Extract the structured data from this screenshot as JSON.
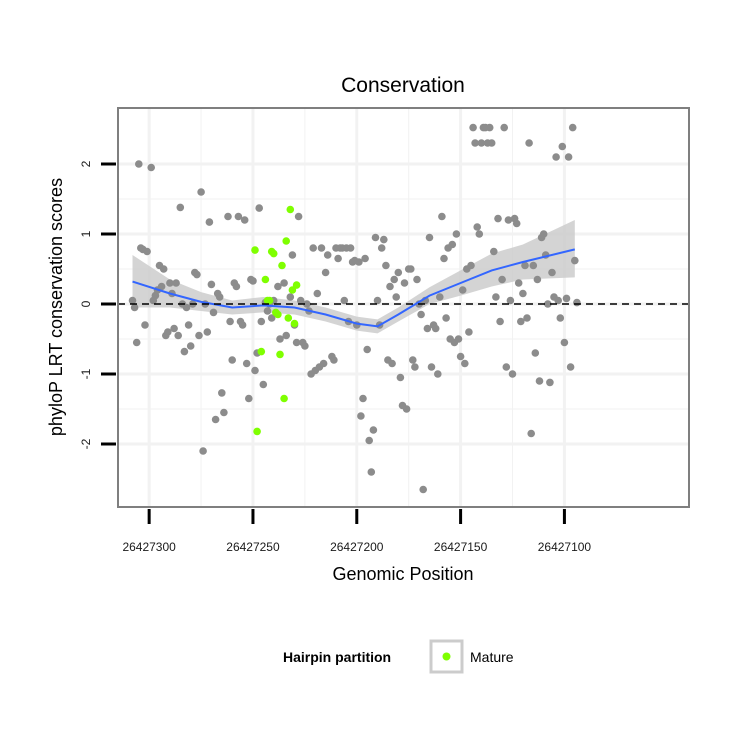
{
  "chart_data": {
    "type": "scatter",
    "title": "Conservation",
    "xlabel": "Genomic Position",
    "ylabel": "phyloP LRT conservation scores",
    "x_reversed": true,
    "xlim": [
      26427315,
      26427040
    ],
    "ylim": [
      -2.9,
      2.8
    ],
    "x_ticks": [
      26427300,
      26427250,
      26427200,
      26427150,
      26427100
    ],
    "x_tick_labels": [
      "26427300",
      "26427250",
      "26427200",
      "26427150",
      "26427100"
    ],
    "y_ticks": [
      -2,
      -1,
      0,
      1,
      2
    ],
    "y_tick_labels": [
      "-2",
      "-1",
      "0",
      "1",
      "2"
    ],
    "grid": true,
    "reference_line": {
      "y": 0,
      "style": "dashed"
    },
    "legend": {
      "title": "Hairpin partition",
      "placement": "bottom",
      "entries": [
        {
          "label": "Mature",
          "color": "#7fff00"
        }
      ]
    },
    "colors": {
      "points": "#8c8c8c",
      "mature": "#7fff00",
      "smooth_line": "#3366ff",
      "confidence_band": "#cccccc",
      "panel_border": "#7f7f7f",
      "grid": "#f2f2f2"
    },
    "series": [
      {
        "name": "Other",
        "color": "#8c8c8c",
        "points": [
          [
            26427308,
            0.05
          ],
          [
            26427307,
            -0.05
          ],
          [
            26427306,
            -0.55
          ],
          [
            26427305,
            2.0
          ],
          [
            26427304,
            0.8
          ],
          [
            26427303,
            0.78
          ],
          [
            26427302,
            -0.3
          ],
          [
            26427301,
            0.75
          ],
          [
            26427299,
            1.95
          ],
          [
            26427298,
            0.05
          ],
          [
            26427297,
            0.12
          ],
          [
            26427296,
            0.2
          ],
          [
            26427295,
            0.55
          ],
          [
            26427294,
            0.25
          ],
          [
            26427293,
            0.5
          ],
          [
            26427292,
            -0.45
          ],
          [
            26427291,
            -0.4
          ],
          [
            26427290,
            0.3
          ],
          [
            26427289,
            0.15
          ],
          [
            26427288,
            -0.35
          ],
          [
            26427287,
            0.3
          ],
          [
            26427286,
            -0.45
          ],
          [
            26427285,
            1.38
          ],
          [
            26427284,
            0.0
          ],
          [
            26427283,
            -0.68
          ],
          [
            26427282,
            -0.05
          ],
          [
            26427281,
            -0.3
          ],
          [
            26427280,
            -0.6
          ],
          [
            26427279,
            0.0
          ],
          [
            26427278,
            0.45
          ],
          [
            26427277,
            0.42
          ],
          [
            26427276,
            -0.45
          ],
          [
            26427275,
            1.6
          ],
          [
            26427274,
            -2.1
          ],
          [
            26427273,
            0.0
          ],
          [
            26427272,
            -0.4
          ],
          [
            26427271,
            1.17
          ],
          [
            26427270,
            0.28
          ],
          [
            26427269,
            -0.12
          ],
          [
            26427268,
            -1.65
          ],
          [
            26427267,
            0.15
          ],
          [
            26427266,
            0.1
          ],
          [
            26427265,
            -1.27
          ],
          [
            26427264,
            -1.55
          ],
          [
            26427262,
            1.25
          ],
          [
            26427261,
            -0.25
          ],
          [
            26427260,
            -0.8
          ],
          [
            26427259,
            0.3
          ],
          [
            26427258,
            0.25
          ],
          [
            26427257,
            1.25
          ],
          [
            26427256,
            -0.25
          ],
          [
            26427255,
            -0.3
          ],
          [
            26427254,
            1.2
          ],
          [
            26427253,
            -0.85
          ],
          [
            26427252,
            -1.35
          ],
          [
            26427251,
            0.35
          ],
          [
            26427250,
            0.33
          ],
          [
            26427249,
            -0.95
          ],
          [
            26427248,
            -0.7
          ],
          [
            26427247,
            1.37
          ],
          [
            26427246,
            -0.25
          ],
          [
            26427245,
            -1.15
          ],
          [
            26427244,
            0.02
          ],
          [
            26427243,
            -0.1
          ],
          [
            26427242,
            0.0
          ],
          [
            26427241,
            -0.2
          ],
          [
            26427240,
            0.05
          ],
          [
            26427238,
            0.25
          ],
          [
            26427237,
            -0.5
          ],
          [
            26427235,
            0.3
          ],
          [
            26427234,
            -0.45
          ],
          [
            26427232,
            0.1
          ],
          [
            26427231,
            0.7
          ],
          [
            26427230,
            -0.3
          ],
          [
            26427229,
            -0.55
          ],
          [
            26427228,
            1.25
          ],
          [
            26427227,
            0.05
          ],
          [
            26427226,
            -0.55
          ],
          [
            26427225,
            -0.6
          ],
          [
            26427224,
            0.0
          ],
          [
            26427223,
            -0.1
          ],
          [
            26427222,
            -1.0
          ],
          [
            26427221,
            0.8
          ],
          [
            26427220,
            -0.95
          ],
          [
            26427219,
            0.15
          ],
          [
            26427218,
            -0.9
          ],
          [
            26427217,
            0.8
          ],
          [
            26427216,
            -0.85
          ],
          [
            26427215,
            0.45
          ],
          [
            26427214,
            0.7
          ],
          [
            26427212,
            -0.75
          ],
          [
            26427211,
            -0.8
          ],
          [
            26427210,
            0.8
          ],
          [
            26427209,
            0.65
          ],
          [
            26427208,
            0.8
          ],
          [
            26427207,
            0.8
          ],
          [
            26427206,
            0.05
          ],
          [
            26427205,
            0.8
          ],
          [
            26427204,
            -0.25
          ],
          [
            26427203,
            0.8
          ],
          [
            26427202,
            0.6
          ],
          [
            26427201,
            0.62
          ],
          [
            26427200,
            -0.3
          ],
          [
            26427199,
            0.6
          ],
          [
            26427198,
            -1.6
          ],
          [
            26427197,
            -1.35
          ],
          [
            26427196,
            0.65
          ],
          [
            26427195,
            -0.65
          ],
          [
            26427194,
            -1.95
          ],
          [
            26427193,
            -2.4
          ],
          [
            26427192,
            -1.8
          ],
          [
            26427191,
            0.95
          ],
          [
            26427190,
            0.05
          ],
          [
            26427189,
            -0.3
          ],
          [
            26427188,
            0.8
          ],
          [
            26427187,
            0.92
          ],
          [
            26427186,
            0.55
          ],
          [
            26427185,
            -0.8
          ],
          [
            26427184,
            0.25
          ],
          [
            26427183,
            -0.85
          ],
          [
            26427182,
            0.35
          ],
          [
            26427181,
            0.1
          ],
          [
            26427180,
            0.45
          ],
          [
            26427179,
            -1.05
          ],
          [
            26427178,
            -1.45
          ],
          [
            26427177,
            0.3
          ],
          [
            26427176,
            -1.5
          ],
          [
            26427175,
            0.5
          ],
          [
            26427174,
            0.5
          ],
          [
            26427173,
            -0.8
          ],
          [
            26427172,
            -0.9
          ],
          [
            26427171,
            0.35
          ],
          [
            26427170,
            0.0
          ],
          [
            26427169,
            -0.15
          ],
          [
            26427168,
            -2.65
          ],
          [
            26427167,
            0.05
          ],
          [
            26427166,
            -0.35
          ],
          [
            26427165,
            0.95
          ],
          [
            26427164,
            -0.9
          ],
          [
            26427163,
            -0.3
          ],
          [
            26427162,
            -0.35
          ],
          [
            26427161,
            -1.0
          ],
          [
            26427160,
            0.1
          ],
          [
            26427159,
            1.25
          ],
          [
            26427158,
            0.65
          ],
          [
            26427157,
            -0.2
          ],
          [
            26427156,
            0.8
          ],
          [
            26427155,
            -0.5
          ],
          [
            26427154,
            0.85
          ],
          [
            26427153,
            -0.55
          ],
          [
            26427152,
            1.0
          ],
          [
            26427151,
            -0.5
          ],
          [
            26427150,
            -0.75
          ],
          [
            26427149,
            0.2
          ],
          [
            26427148,
            -0.85
          ],
          [
            26427147,
            0.5
          ],
          [
            26427146,
            -0.4
          ],
          [
            26427145,
            0.55
          ],
          [
            26427144,
            2.52
          ],
          [
            26427143,
            2.3
          ],
          [
            26427142,
            1.1
          ],
          [
            26427141,
            1.0
          ],
          [
            26427140,
            2.3
          ],
          [
            26427139,
            2.52
          ],
          [
            26427138,
            2.52
          ],
          [
            26427137,
            2.3
          ],
          [
            26427136,
            2.52
          ],
          [
            26427135,
            2.3
          ],
          [
            26427134,
            0.75
          ],
          [
            26427133,
            0.1
          ],
          [
            26427132,
            1.22
          ],
          [
            26427131,
            -0.25
          ],
          [
            26427130,
            0.35
          ],
          [
            26427129,
            2.52
          ],
          [
            26427128,
            -0.9
          ],
          [
            26427127,
            1.2
          ],
          [
            26427126,
            0.05
          ],
          [
            26427125,
            -1.0
          ],
          [
            26427124,
            1.22
          ],
          [
            26427123,
            1.15
          ],
          [
            26427122,
            0.3
          ],
          [
            26427121,
            -0.25
          ],
          [
            26427120,
            0.15
          ],
          [
            26427119,
            0.55
          ],
          [
            26427118,
            -0.2
          ],
          [
            26427117,
            2.3
          ],
          [
            26427116,
            -1.85
          ],
          [
            26427115,
            0.55
          ],
          [
            26427114,
            -0.7
          ],
          [
            26427113,
            0.35
          ],
          [
            26427112,
            -1.1
          ],
          [
            26427111,
            0.95
          ],
          [
            26427110,
            1.0
          ],
          [
            26427109,
            0.7
          ],
          [
            26427108,
            0.0
          ],
          [
            26427107,
            -1.12
          ],
          [
            26427106,
            0.45
          ],
          [
            26427105,
            0.1
          ],
          [
            26427104,
            2.1
          ],
          [
            26427103,
            0.05
          ],
          [
            26427102,
            -0.2
          ],
          [
            26427101,
            2.25
          ],
          [
            26427100,
            -0.55
          ],
          [
            26427099,
            0.08
          ],
          [
            26427098,
            2.1
          ],
          [
            26427097,
            -0.9
          ],
          [
            26427096,
            2.52
          ],
          [
            26427095,
            0.62
          ],
          [
            26427094,
            0.02
          ]
        ]
      },
      {
        "name": "Mature",
        "color": "#7fff00",
        "points": [
          [
            26427249,
            0.77
          ],
          [
            26427248,
            -1.82
          ],
          [
            26427246,
            -0.68
          ],
          [
            26427244,
            0.35
          ],
          [
            26427243,
            0.05
          ],
          [
            26427242,
            0.05
          ],
          [
            26427241,
            0.75
          ],
          [
            26427240,
            0.72
          ],
          [
            26427239,
            -0.12
          ],
          [
            26427238,
            -0.15
          ],
          [
            26427237,
            -0.72
          ],
          [
            26427236,
            0.55
          ],
          [
            26427235,
            -1.35
          ],
          [
            26427234,
            0.9
          ],
          [
            26427233,
            -0.2
          ],
          [
            26427232,
            1.35
          ],
          [
            26427231,
            0.2
          ],
          [
            26427230,
            -0.28
          ],
          [
            26427229,
            0.27
          ]
        ]
      }
    ],
    "smooth": {
      "x": [
        26427308,
        26427290,
        26427275,
        26427260,
        26427245,
        26427230,
        26427215,
        26427200,
        26427190,
        26427180,
        26427165,
        26427150,
        26427135,
        26427120,
        26427095
      ],
      "y": [
        0.32,
        0.15,
        0.03,
        -0.05,
        -0.02,
        -0.05,
        -0.15,
        -0.28,
        -0.32,
        -0.15,
        0.12,
        0.3,
        0.48,
        0.6,
        0.78
      ],
      "lower": [
        -0.05,
        -0.05,
        -0.1,
        -0.15,
        -0.12,
        -0.15,
        -0.25,
        -0.38,
        -0.42,
        -0.25,
        0.0,
        0.12,
        0.25,
        0.35,
        0.38
      ],
      "upper": [
        0.7,
        0.35,
        0.17,
        0.05,
        0.1,
        0.05,
        -0.05,
        -0.18,
        -0.22,
        -0.05,
        0.24,
        0.48,
        0.72,
        0.85,
        1.2
      ]
    }
  }
}
